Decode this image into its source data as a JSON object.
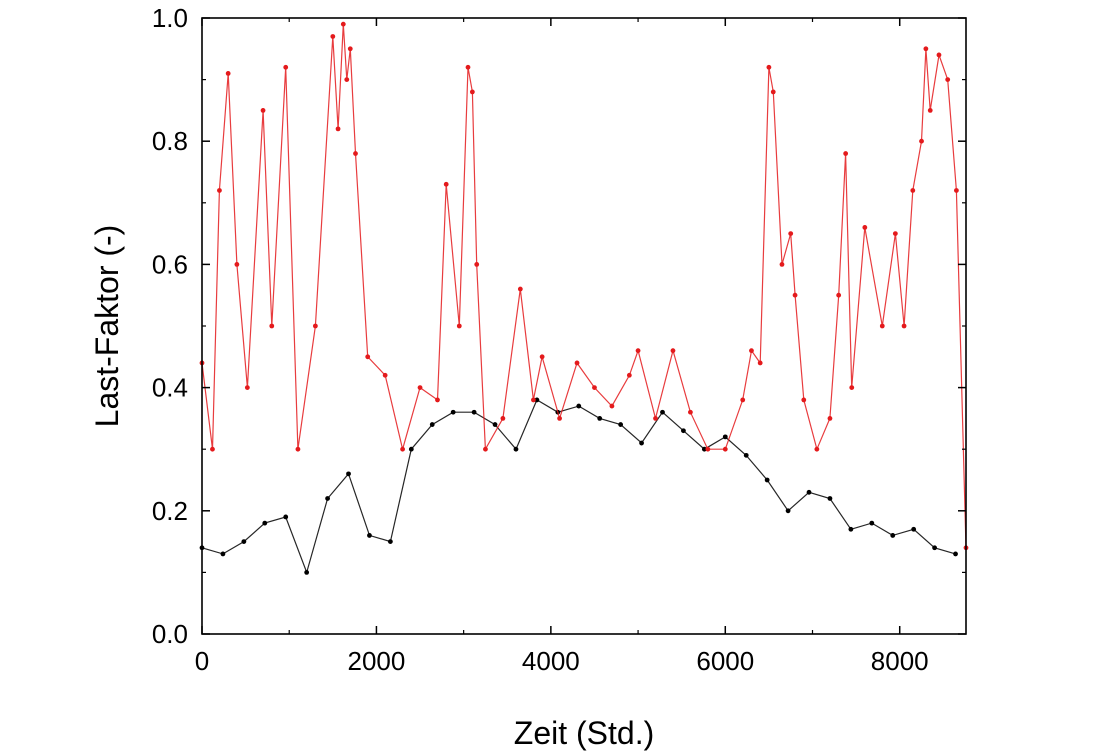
{
  "chart_data": {
    "type": "line",
    "title": "",
    "xlabel": "Zeit (Std.)",
    "ylabel": "Last-Faktor (-)",
    "xlim": [
      0,
      8760
    ],
    "ylim": [
      0.0,
      1.0
    ],
    "x_ticks": [
      0,
      2000,
      4000,
      6000,
      8000
    ],
    "x_tick_labels": [
      "0",
      "2000",
      "4000",
      "6000",
      "8000"
    ],
    "y_ticks": [
      0.0,
      0.2,
      0.4,
      0.6,
      0.8,
      1.0
    ],
    "y_tick_labels": [
      "0.0",
      "0.2",
      "0.4",
      "0.6",
      "0.8",
      "1.0"
    ],
    "grid": false,
    "legend": "none",
    "series": [
      {
        "color": "#000000",
        "marker": "dot",
        "x": [
          0,
          240,
          480,
          720,
          960,
          1200,
          1440,
          1680,
          1920,
          2160,
          2400,
          2640,
          2880,
          3120,
          3360,
          3600,
          3840,
          4080,
          4320,
          4560,
          4800,
          5040,
          5280,
          5520,
          5760,
          6000,
          6240,
          6480,
          6720,
          6960,
          7200,
          7440,
          7680,
          7920,
          8160,
          8400,
          8640
        ],
        "y": [
          0.14,
          0.13,
          0.15,
          0.18,
          0.19,
          0.1,
          0.22,
          0.26,
          0.16,
          0.15,
          0.3,
          0.34,
          0.36,
          0.36,
          0.34,
          0.3,
          0.38,
          0.36,
          0.37,
          0.35,
          0.34,
          0.31,
          0.36,
          0.33,
          0.3,
          0.32,
          0.29,
          0.25,
          0.2,
          0.23,
          0.22,
          0.17,
          0.18,
          0.16,
          0.17,
          0.14,
          0.13
        ]
      },
      {
        "color": "#e41a1c",
        "marker": "dot",
        "x": [
          0,
          120,
          200,
          300,
          400,
          520,
          700,
          800,
          960,
          1100,
          1300,
          1500,
          1560,
          1620,
          1660,
          1700,
          1760,
          1900,
          2100,
          2300,
          2500,
          2700,
          2800,
          2950,
          3050,
          3100,
          3150,
          3250,
          3450,
          3650,
          3800,
          3900,
          4100,
          4300,
          4500,
          4700,
          4900,
          5000,
          5200,
          5400,
          5600,
          5800,
          6000,
          6200,
          6300,
          6400,
          6500,
          6550,
          6650,
          6750,
          6800,
          6900,
          7050,
          7200,
          7300,
          7380,
          7450,
          7600,
          7800,
          7950,
          8050,
          8150,
          8250,
          8300,
          8350,
          8450,
          8550,
          8650,
          8760
        ],
        "y": [
          0.44,
          0.3,
          0.72,
          0.91,
          0.6,
          0.4,
          0.85,
          0.5,
          0.92,
          0.3,
          0.5,
          0.97,
          0.82,
          0.99,
          0.9,
          0.95,
          0.78,
          0.45,
          0.42,
          0.3,
          0.4,
          0.38,
          0.73,
          0.5,
          0.92,
          0.88,
          0.6,
          0.3,
          0.35,
          0.56,
          0.38,
          0.45,
          0.35,
          0.44,
          0.4,
          0.37,
          0.42,
          0.46,
          0.35,
          0.46,
          0.36,
          0.3,
          0.3,
          0.38,
          0.46,
          0.44,
          0.92,
          0.88,
          0.6,
          0.65,
          0.55,
          0.38,
          0.3,
          0.35,
          0.55,
          0.78,
          0.4,
          0.66,
          0.5,
          0.65,
          0.5,
          0.72,
          0.8,
          0.95,
          0.85,
          0.94,
          0.9,
          0.72,
          0.14
        ]
      }
    ]
  }
}
